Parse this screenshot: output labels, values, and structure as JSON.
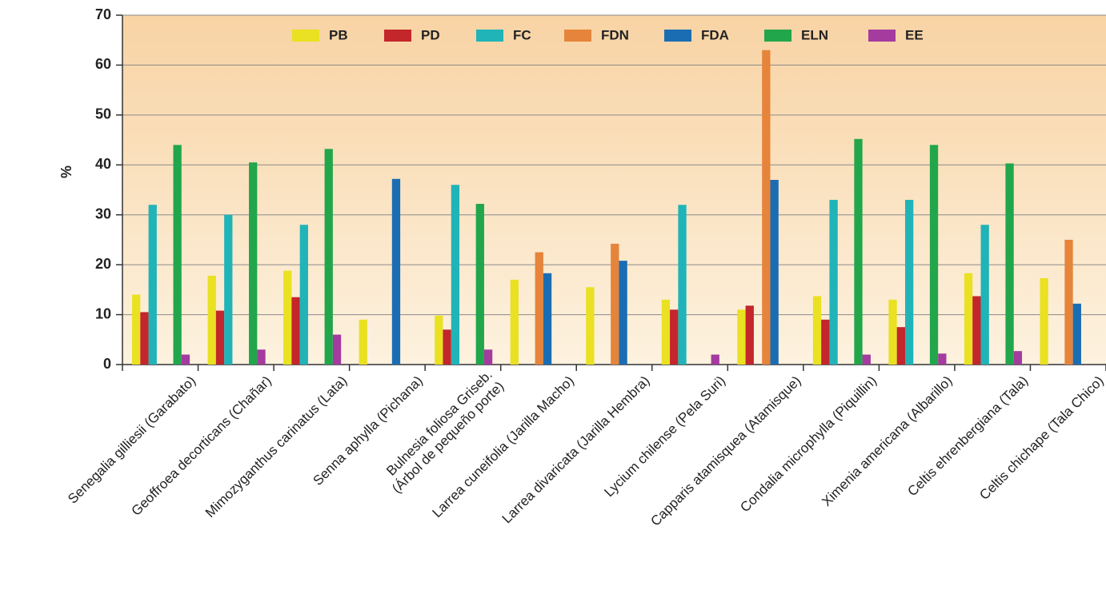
{
  "chart_data": {
    "type": "bar",
    "y_label": "%",
    "categories": [
      "Senegalia gilliesii (Garabato)",
      "Geoffroea decorticans (Chañar)",
      "Mimozyganthus carinatus (Lata)",
      "Senna aphylla (Pichana)",
      "Bulnesia foliosa Griseb.\n(Árbol de pequeño porte)",
      "Larrea cuneifolia (Jarilla Macho)",
      "Larrea divaricata (Jarilla Hembra)",
      "Lycium chilense (Pela Suri)",
      "Capparis atamisquea (Atamisque)",
      "Condalia microphylla (Piquillin)",
      "Ximenia americana (Albarillo)",
      "Celtis ehrenbergiana (Tala)",
      "Celtis chichape (Tala Chico)"
    ],
    "series": [
      {
        "name": "PB",
        "color": "#e9e121",
        "values": [
          14,
          17.8,
          18.8,
          9,
          9.8,
          17,
          15.5,
          13,
          11,
          13.7,
          13,
          18.3,
          17.3
        ]
      },
      {
        "name": "PD",
        "color": "#c3262b",
        "values": [
          10.5,
          10.8,
          13.5,
          null,
          7,
          null,
          null,
          11,
          11.8,
          9,
          7.5,
          13.7,
          null
        ]
      },
      {
        "name": "FC",
        "color": "#20b4b8",
        "values": [
          32,
          30,
          28,
          null,
          36,
          null,
          null,
          32,
          null,
          33,
          33,
          28,
          null
        ]
      },
      {
        "name": "FDN",
        "color": "#e5843a",
        "values": [
          null,
          null,
          null,
          null,
          null,
          22.5,
          24.2,
          null,
          63,
          null,
          null,
          null,
          25
        ]
      },
      {
        "name": "FDA",
        "color": "#1b6db3",
        "values": [
          null,
          null,
          null,
          37.2,
          null,
          18.3,
          20.8,
          null,
          37,
          null,
          null,
          null,
          12.2
        ]
      },
      {
        "name": "ELN",
        "color": "#22a64b",
        "values": [
          44,
          40.5,
          43.2,
          null,
          32.2,
          null,
          null,
          null,
          null,
          45.2,
          44,
          40.3,
          null
        ]
      },
      {
        "name": "EE",
        "color": "#a43b9f",
        "values": [
          2,
          3,
          6,
          null,
          3,
          null,
          null,
          2,
          null,
          2,
          2.2,
          2.7,
          null
        ]
      }
    ],
    "ylim": [
      0,
      70
    ],
    "yticks": [
      0,
      10,
      20,
      30,
      40,
      50,
      60,
      70
    ],
    "grid": true,
    "legend": "top"
  }
}
